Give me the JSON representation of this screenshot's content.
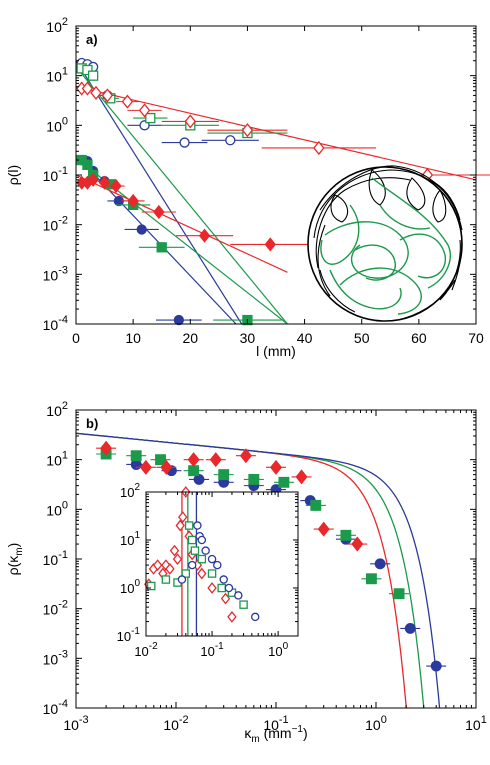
{
  "chart_data": [
    {
      "panel_label": "a)",
      "type": "scatter",
      "xlabel": "l (mm)",
      "ylabel": "ρ(l)",
      "xlim": [
        0,
        70
      ],
      "ylim": [
        0.0001,
        100
      ],
      "yscale": "log",
      "x_ticks": [
        "0",
        "10",
        "20",
        "30",
        "40",
        "50",
        "60",
        "70"
      ],
      "y_ticks": [
        {
          "base": "10",
          "exp": "-4"
        },
        {
          "base": "10",
          "exp": "-3"
        },
        {
          "base": "10",
          "exp": "-2"
        },
        {
          "base": "10",
          "exp": "-1"
        },
        {
          "base": "10",
          "exp": "0"
        },
        {
          "base": "10",
          "exp": "1"
        },
        {
          "base": "10",
          "exp": "2"
        }
      ],
      "grid": false,
      "series": [
        {
          "marker": "circle",
          "filled": false,
          "color": "#2b3a9c",
          "points": [
            [
              1.0,
              18
            ],
            [
              2.0,
              17
            ],
            [
              3.0,
              15
            ],
            [
              5.5,
              4.0
            ],
            [
              12.0,
              1.0
            ],
            [
              19.0,
              0.45
            ],
            [
              27.0,
              0.5
            ]
          ],
          "xerr": [
            0.5,
            0.5,
            0.7,
            1.5,
            3,
            4,
            5
          ]
        },
        {
          "marker": "square",
          "filled": false,
          "color": "#1a9a4a",
          "points": [
            [
              1.0,
              14
            ],
            [
              2.0,
              13
            ],
            [
              3.0,
              10
            ],
            [
              6.0,
              3.5
            ],
            [
              13.0,
              1.4
            ],
            [
              20.0,
              1.0
            ],
            [
              30.0,
              0.7
            ]
          ],
          "xerr": [
            0.5,
            0.5,
            0.7,
            1.5,
            3,
            5,
            7
          ]
        },
        {
          "marker": "diamond",
          "filled": false,
          "color": "#e8282a",
          "points": [
            [
              1.0,
              5.5
            ],
            [
              2.0,
              5.5
            ],
            [
              3.5,
              4.5
            ],
            [
              5.5,
              4.0
            ],
            [
              9.0,
              3.0
            ],
            [
              12.0,
              2.0
            ],
            [
              20.0,
              1.2
            ],
            [
              30.0,
              0.8
            ],
            [
              42.5,
              0.35
            ],
            [
              61.5,
              0.1
            ]
          ],
          "xerr": [
            0.5,
            0.7,
            1,
            1.5,
            2,
            3,
            5,
            7,
            10,
            12
          ]
        },
        {
          "marker": "circle",
          "filled": true,
          "color": "#2b3a9c",
          "points": [
            [
              1.0,
              0.2
            ],
            [
              2.0,
              0.19
            ],
            [
              3.0,
              0.12
            ],
            [
              5.0,
              0.075
            ],
            [
              7.5,
              0.03
            ],
            [
              11.5,
              0.008
            ],
            [
              18.0,
              0.00012
            ]
          ],
          "xerr": [
            0.5,
            0.5,
            0.7,
            1.2,
            2,
            3,
            4
          ]
        },
        {
          "marker": "square",
          "filled": true,
          "color": "#1a9a4a",
          "points": [
            [
              1.0,
              0.2
            ],
            [
              2.0,
              0.16
            ],
            [
              3.0,
              0.1
            ],
            [
              6.0,
              0.065
            ],
            [
              10.0,
              0.025
            ],
            [
              15.0,
              0.0035
            ],
            [
              30.0,
              0.00012
            ]
          ],
          "xerr": [
            0.5,
            0.5,
            0.7,
            1.5,
            3,
            4,
            6
          ]
        },
        {
          "marker": "diamond",
          "filled": true,
          "color": "#e8282a",
          "points": [
            [
              1.0,
              0.07
            ],
            [
              2.0,
              0.07
            ],
            [
              3.0,
              0.08
            ],
            [
              5.0,
              0.07
            ],
            [
              7.0,
              0.06
            ],
            [
              10.0,
              0.03
            ],
            [
              14.5,
              0.018
            ],
            [
              22.5,
              0.006
            ],
            [
              34.0,
              0.004
            ]
          ],
          "xerr": [
            0.5,
            0.5,
            0.7,
            1,
            1.5,
            2,
            3,
            5,
            7
          ]
        }
      ],
      "fit_lines": [
        {
          "color": "#2b3a9c",
          "from": [
            0,
            20
          ],
          "to": [
            29,
            0.0001
          ]
        },
        {
          "color": "#1a9a4a",
          "from": [
            0,
            15
          ],
          "to": [
            37,
            0.0001
          ]
        },
        {
          "color": "#e8282a",
          "from": [
            0,
            6
          ],
          "to": [
            70,
            0.08
          ]
        },
        {
          "color": "#2b3a9c",
          "from": [
            0,
            0.25
          ],
          "to": [
            28,
            0.0001
          ]
        },
        {
          "color": "#1a9a4a",
          "from": [
            0,
            0.22
          ],
          "to": [
            37,
            0.0001
          ]
        },
        {
          "color": "#e8282a",
          "from": [
            0,
            0.1
          ],
          "to": [
            37,
            0.0011
          ]
        }
      ],
      "inset": "trajectory-drawing"
    },
    {
      "panel_label": "b)",
      "type": "scatter",
      "xlabel": {
        "text": "κ",
        "sub": "m",
        "unit_open": " (mm",
        "unit_sup": "−1",
        "unit_close": ")"
      },
      "ylabel": {
        "text": "ρ(κ",
        "sub": "m",
        "close": ")"
      },
      "xscale": "log",
      "yscale": "log",
      "xlim": [
        0.001,
        10
      ],
      "ylim": [
        0.0001,
        100
      ],
      "x_ticks": [
        {
          "base": "10",
          "exp": "-3"
        },
        {
          "base": "10",
          "exp": "-2"
        },
        {
          "base": "10",
          "exp": "-1"
        },
        {
          "base": "10",
          "exp": "0"
        },
        {
          "base": "10",
          "exp": "1"
        }
      ],
      "y_ticks": [
        {
          "base": "10",
          "exp": "-4"
        },
        {
          "base": "10",
          "exp": "-3"
        },
        {
          "base": "10",
          "exp": "-2"
        },
        {
          "base": "10",
          "exp": "-1"
        },
        {
          "base": "10",
          "exp": "0"
        },
        {
          "base": "10",
          "exp": "1"
        },
        {
          "base": "10",
          "exp": "2"
        }
      ],
      "grid": false,
      "series": [
        {
          "marker": "circle",
          "filled": true,
          "color": "#2b3a9c",
          "points": [
            [
              0.004,
              8
            ],
            [
              0.009,
              6
            ],
            [
              0.017,
              4
            ],
            [
              0.03,
              3.5
            ],
            [
              0.06,
              3
            ],
            [
              0.1,
              2.5
            ],
            [
              0.22,
              1.5
            ],
            [
              0.5,
              0.25
            ],
            [
              1.1,
              0.08
            ],
            [
              2.2,
              0.004
            ],
            [
              4.0,
              0.0007
            ]
          ]
        },
        {
          "marker": "square",
          "filled": true,
          "color": "#1a9a4a",
          "points": [
            [
              0.002,
              13
            ],
            [
              0.004,
              12
            ],
            [
              0.007,
              10
            ],
            [
              0.015,
              6
            ],
            [
              0.03,
              5
            ],
            [
              0.06,
              4
            ],
            [
              0.12,
              3.5
            ],
            [
              0.25,
              1.2
            ],
            [
              0.5,
              0.3
            ],
            [
              0.9,
              0.04
            ],
            [
              1.7,
              0.02
            ]
          ]
        },
        {
          "marker": "diamond",
          "filled": true,
          "color": "#e8282a",
          "points": [
            [
              0.002,
              17
            ],
            [
              0.005,
              7
            ],
            [
              0.008,
              7
            ],
            [
              0.015,
              10
            ],
            [
              0.025,
              10
            ],
            [
              0.05,
              12
            ],
            [
              0.1,
              7
            ],
            [
              0.18,
              4.5
            ],
            [
              0.3,
              0.4
            ],
            [
              0.65,
              0.2
            ]
          ]
        }
      ],
      "fit_curves": [
        {
          "color": "#e8282a",
          "kc": 0.6
        },
        {
          "color": "#1a9a4a",
          "kc": 0.9
        },
        {
          "color": "#2b3a9c",
          "kc": 1.3
        }
      ],
      "inset": {
        "xscale": "log",
        "yscale": "log",
        "xlim": [
          0.01,
          2
        ],
        "ylim": [
          0.1,
          100
        ],
        "x_ticks": [
          {
            "base": "10",
            "exp": "-2"
          },
          {
            "base": "10",
            "exp": "-1"
          },
          {
            "base": "10",
            "exp": "0"
          }
        ],
        "y_ticks": [
          {
            "base": "10",
            "exp": "-1"
          },
          {
            "base": "10",
            "exp": "0"
          },
          {
            "base": "10",
            "exp": "1"
          },
          {
            "base": "10",
            "exp": "2"
          }
        ],
        "vlines": [
          {
            "color": "#e8282a",
            "x": 0.035
          },
          {
            "color": "#1a9a4a",
            "x": 0.043
          },
          {
            "color": "#2b3a9c",
            "x": 0.058
          }
        ],
        "series": [
          {
            "marker": "diamond",
            "filled": false,
            "color": "#e8282a",
            "points": [
              [
                0.011,
                1.2
              ],
              [
                0.013,
                2.5
              ],
              [
                0.015,
                3
              ],
              [
                0.018,
                2
              ],
              [
                0.02,
                3
              ],
              [
                0.023,
                2.5
              ],
              [
                0.027,
                6
              ],
              [
                0.03,
                4
              ],
              [
                0.033,
                20
              ],
              [
                0.036,
                30
              ],
              [
                0.04,
                100
              ],
              [
                0.045,
                12
              ],
              [
                0.05,
                5
              ],
              [
                0.06,
                3
              ],
              [
                0.07,
                2
              ],
              [
                0.1,
                1
              ],
              [
                0.16,
                0.6
              ],
              [
                0.2,
                0.25
              ]
            ]
          },
          {
            "marker": "square",
            "filled": false,
            "color": "#1a9a4a",
            "points": [
              [
                0.012,
                1.1
              ],
              [
                0.02,
                1.5
              ],
              [
                0.03,
                1.3
              ],
              [
                0.04,
                2
              ],
              [
                0.045,
                20
              ],
              [
                0.05,
                10
              ],
              [
                0.055,
                6
              ],
              [
                0.07,
                4
              ],
              [
                0.1,
                2
              ],
              [
                0.14,
                1
              ],
              [
                0.2,
                0.8
              ],
              [
                0.3,
                0.45
              ]
            ]
          },
          {
            "marker": "circle",
            "filled": false,
            "color": "#2b3a9c",
            "points": [
              [
                0.035,
                1.5
              ],
              [
                0.05,
                3
              ],
              [
                0.06,
                20
              ],
              [
                0.065,
                12
              ],
              [
                0.07,
                10
              ],
              [
                0.08,
                6
              ],
              [
                0.1,
                4
              ],
              [
                0.12,
                3
              ],
              [
                0.15,
                1.5
              ],
              [
                0.18,
                1
              ],
              [
                0.25,
                0.7
              ],
              [
                0.45,
                0.25
              ]
            ]
          }
        ]
      }
    }
  ]
}
